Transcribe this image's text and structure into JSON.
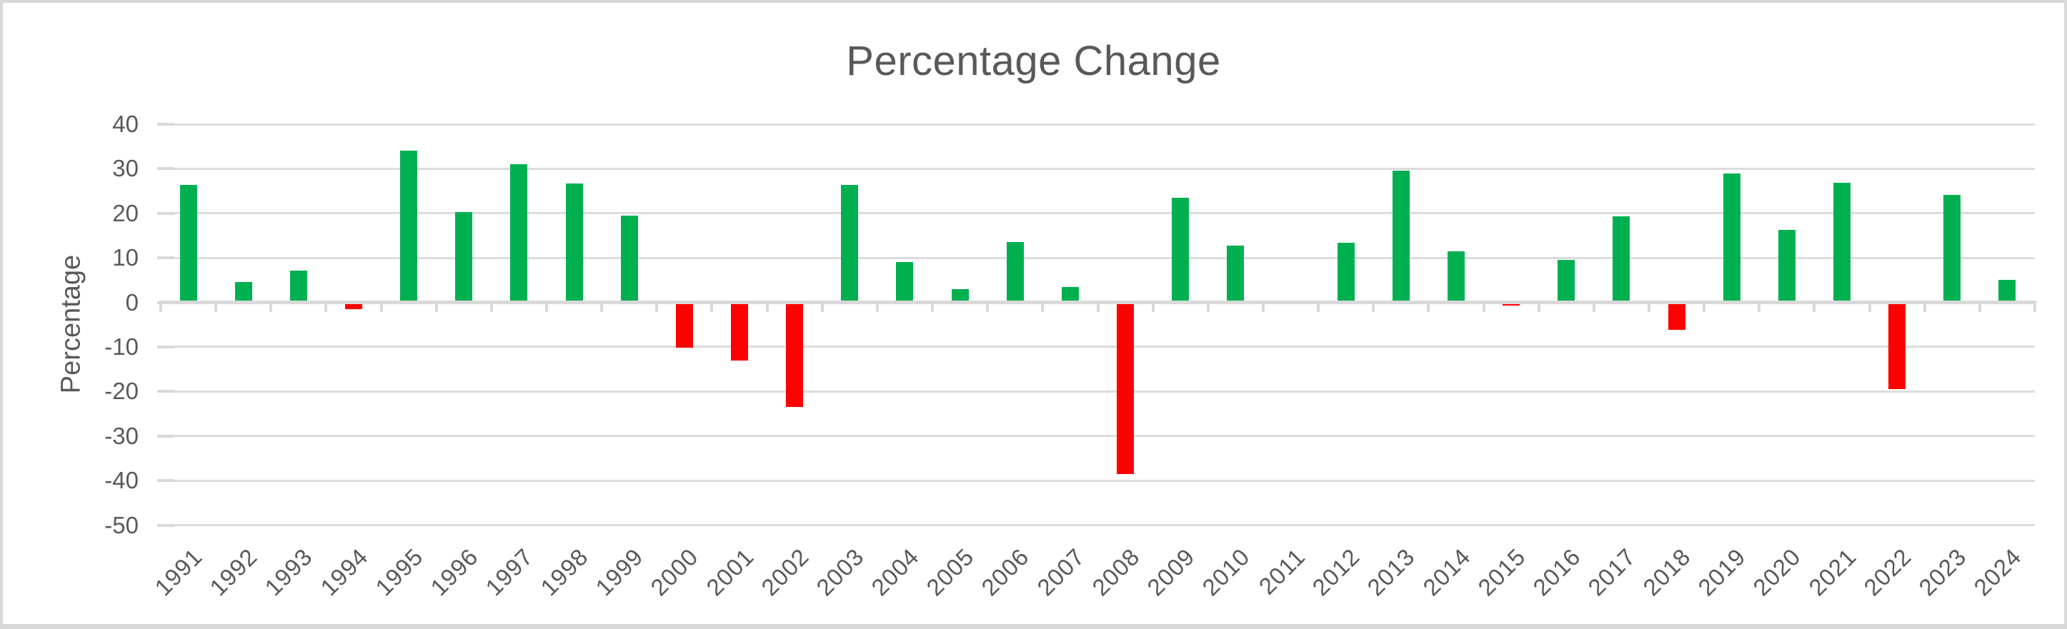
{
  "chart_data": {
    "type": "bar",
    "title": "Percentage Change",
    "xlabel": "",
    "ylabel": "Percentage",
    "categories": [
      "1991",
      "1992",
      "1993",
      "1994",
      "1995",
      "1996",
      "1997",
      "1998",
      "1999",
      "2000",
      "2001",
      "2002",
      "2003",
      "2004",
      "2005",
      "2006",
      "2007",
      "2008",
      "2009",
      "2010",
      "2011",
      "2012",
      "2013",
      "2014",
      "2015",
      "2016",
      "2017",
      "2018",
      "2019",
      "2020",
      "2021",
      "2022",
      "2023",
      "2024"
    ],
    "values": [
      26.3,
      4.5,
      7.1,
      -1.5,
      34.1,
      20.3,
      31.0,
      26.7,
      19.5,
      -10.1,
      -13.0,
      -23.4,
      26.4,
      9.0,
      3.0,
      13.6,
      3.5,
      -38.5,
      23.5,
      12.8,
      0.0,
      13.4,
      29.6,
      11.4,
      -0.7,
      9.5,
      19.4,
      -6.2,
      28.9,
      16.3,
      26.9,
      -19.4,
      24.2,
      5.0
    ],
    "ytick_labels": [
      "40",
      "30",
      "20",
      "10",
      "0",
      "-10",
      "-20",
      "-30",
      "-40",
      "-50"
    ],
    "ytick_values": [
      40,
      30,
      20,
      10,
      0,
      -10,
      -20,
      -30,
      -40,
      -50
    ],
    "ylim": [
      -50,
      40
    ],
    "grid": true,
    "legend": "none",
    "colors": {
      "positive_bar": "#00B050",
      "negative_bar": "#FF0000",
      "axis_text": "#595959",
      "gridline": "#DCDCDC",
      "axis_line": "#D9D9D9"
    }
  }
}
